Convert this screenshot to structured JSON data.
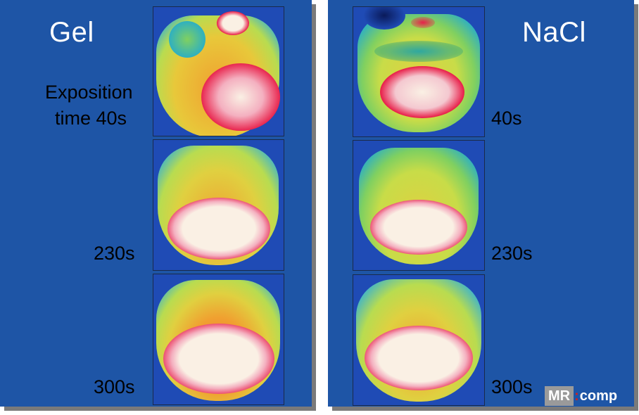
{
  "left_panel": {
    "title": "Gel",
    "labels": [
      "Exposition",
      "time 40s",
      "230s",
      "300s"
    ]
  },
  "right_panel": {
    "title": "NaCl",
    "labels": [
      "40s",
      "230s",
      "300s"
    ]
  },
  "logo": {
    "part1": "MR",
    "part2": ":",
    "part3": "comp"
  },
  "colors": {
    "panel_background": "#1e55a6",
    "cold": "#1f4bb5",
    "cool": "#2fb0c0",
    "mid": "#d8e030",
    "warm": "#f0a030",
    "hot": "#e8204a",
    "hottest": "#faf0e4"
  }
}
